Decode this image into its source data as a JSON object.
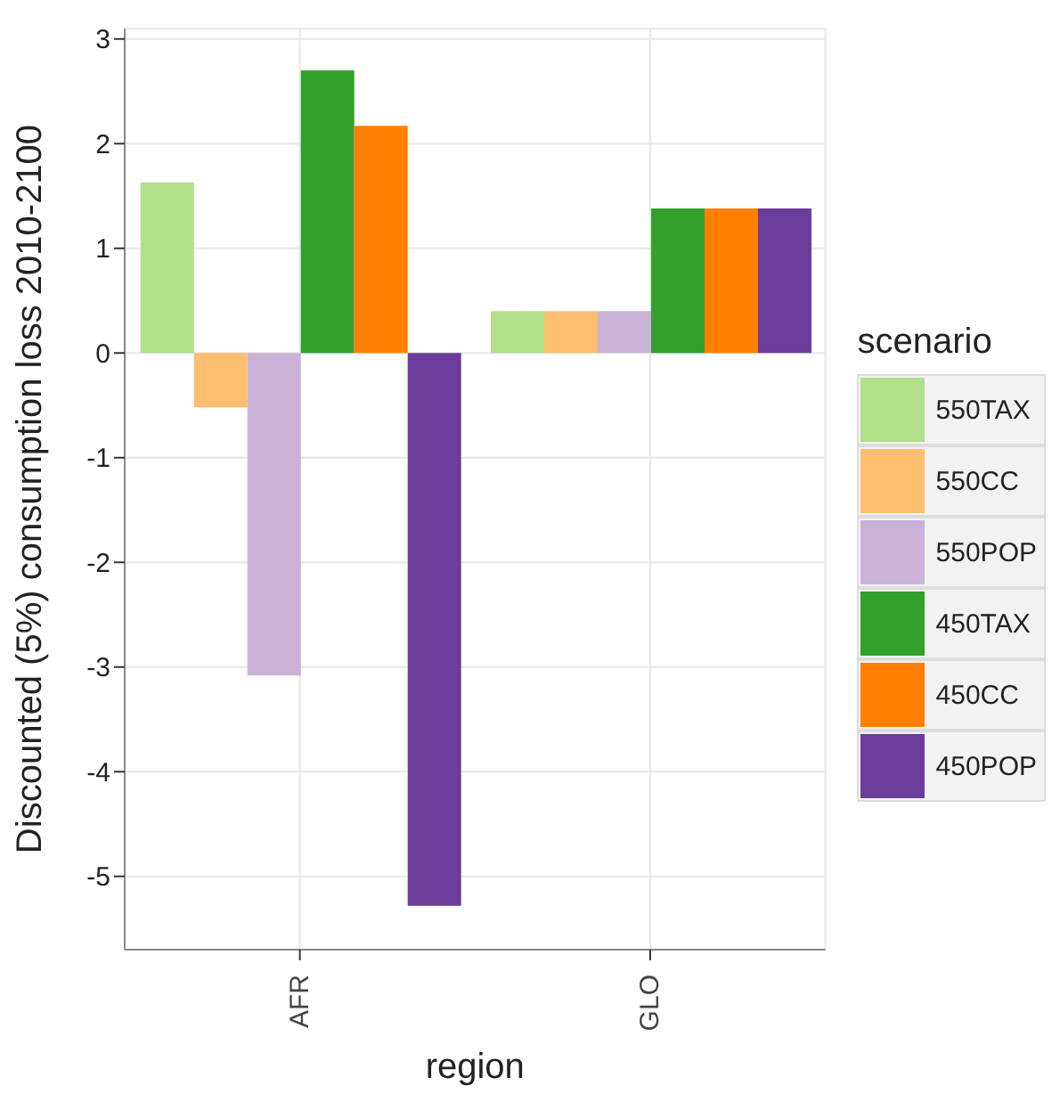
{
  "chart_data": {
    "type": "bar",
    "xlabel": "region",
    "ylabel": "Discounted (5%) consumption loss 2010-2100",
    "legend_title": "scenario",
    "categories": [
      "AFR",
      "GLO"
    ],
    "series": [
      {
        "name": "550TAX",
        "color": "#b2df8a",
        "values": [
          1.63,
          0.4
        ]
      },
      {
        "name": "550CC",
        "color": "#fdbf6f",
        "values": [
          -0.52,
          0.4
        ]
      },
      {
        "name": "550POP",
        "color": "#cab2d6",
        "values": [
          -3.08,
          0.4
        ]
      },
      {
        "name": "450TAX",
        "color": "#33a02c",
        "values": [
          2.7,
          1.38
        ]
      },
      {
        "name": "450CC",
        "color": "#ff7f00",
        "values": [
          2.17,
          1.38
        ]
      },
      {
        "name": "450POP",
        "color": "#6a3d9a",
        "values": [
          -5.28,
          1.38
        ]
      }
    ],
    "ylim": [
      -5.7,
      3.1
    ],
    "yticks": [
      -5,
      -4,
      -3,
      -2,
      -1,
      0,
      1,
      2,
      3
    ],
    "grid": true,
    "legend": "right"
  }
}
